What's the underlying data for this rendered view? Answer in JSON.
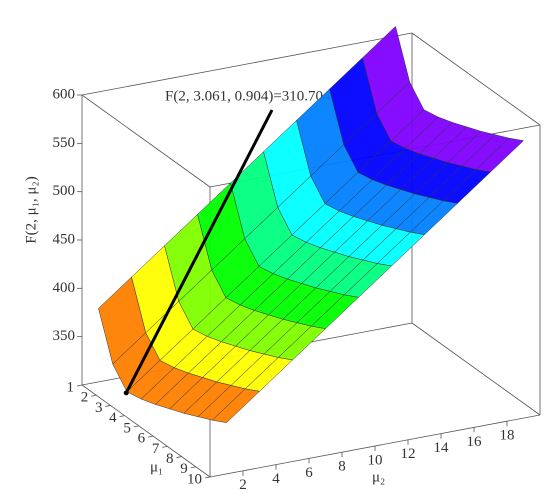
{
  "chart_data": {
    "type": "surface",
    "xlabel": "μ₁",
    "ylabel": "μ₂",
    "zlabel": "F(2, μ₁, μ₂)",
    "annotation": "F(2, 3.061, 0.904)=310.704",
    "marker": {
      "x": 3.061,
      "y": 0.904,
      "z": 310.704
    },
    "x": [
      1,
      2,
      3,
      4,
      5,
      6,
      7,
      8,
      9,
      10
    ],
    "y": [
      1,
      3,
      5,
      7,
      9,
      11,
      13,
      15,
      17,
      19
    ],
    "z": [
      [
        376,
        402,
        428,
        454,
        480,
        506,
        532,
        558,
        584,
        610
      ],
      [
        329,
        355,
        381,
        407,
        433,
        459,
        485,
        511,
        537,
        563
      ],
      [
        311,
        337,
        363,
        389,
        415,
        441,
        467,
        493,
        519,
        545
      ],
      [
        314,
        340,
        366,
        392,
        418,
        444,
        470,
        496,
        522,
        548
      ],
      [
        319,
        345,
        371,
        397,
        423,
        449,
        475,
        501,
        527,
        553
      ],
      [
        325,
        351,
        377,
        403,
        429,
        455,
        481,
        507,
        533,
        559
      ],
      [
        331,
        357,
        383,
        409,
        435,
        461,
        487,
        513,
        539,
        565
      ],
      [
        338,
        364,
        390,
        416,
        442,
        468,
        494,
        520,
        546,
        572
      ],
      [
        345,
        371,
        397,
        423,
        449,
        475,
        501,
        527,
        553,
        579
      ],
      [
        353,
        379,
        405,
        431,
        457,
        483,
        509,
        535,
        561,
        587
      ]
    ],
    "xlim": [
      1,
      10
    ],
    "xticks": [
      1,
      2,
      3,
      4,
      5,
      6,
      7,
      8,
      9,
      10
    ],
    "ylim": [
      0,
      20
    ],
    "yticks": [
      2,
      4,
      6,
      8,
      10,
      12,
      14,
      16,
      18
    ],
    "zlim": [
      300,
      600
    ],
    "zticks": [
      350,
      400,
      450,
      500,
      550,
      600
    ],
    "colormap": "rainbow"
  }
}
